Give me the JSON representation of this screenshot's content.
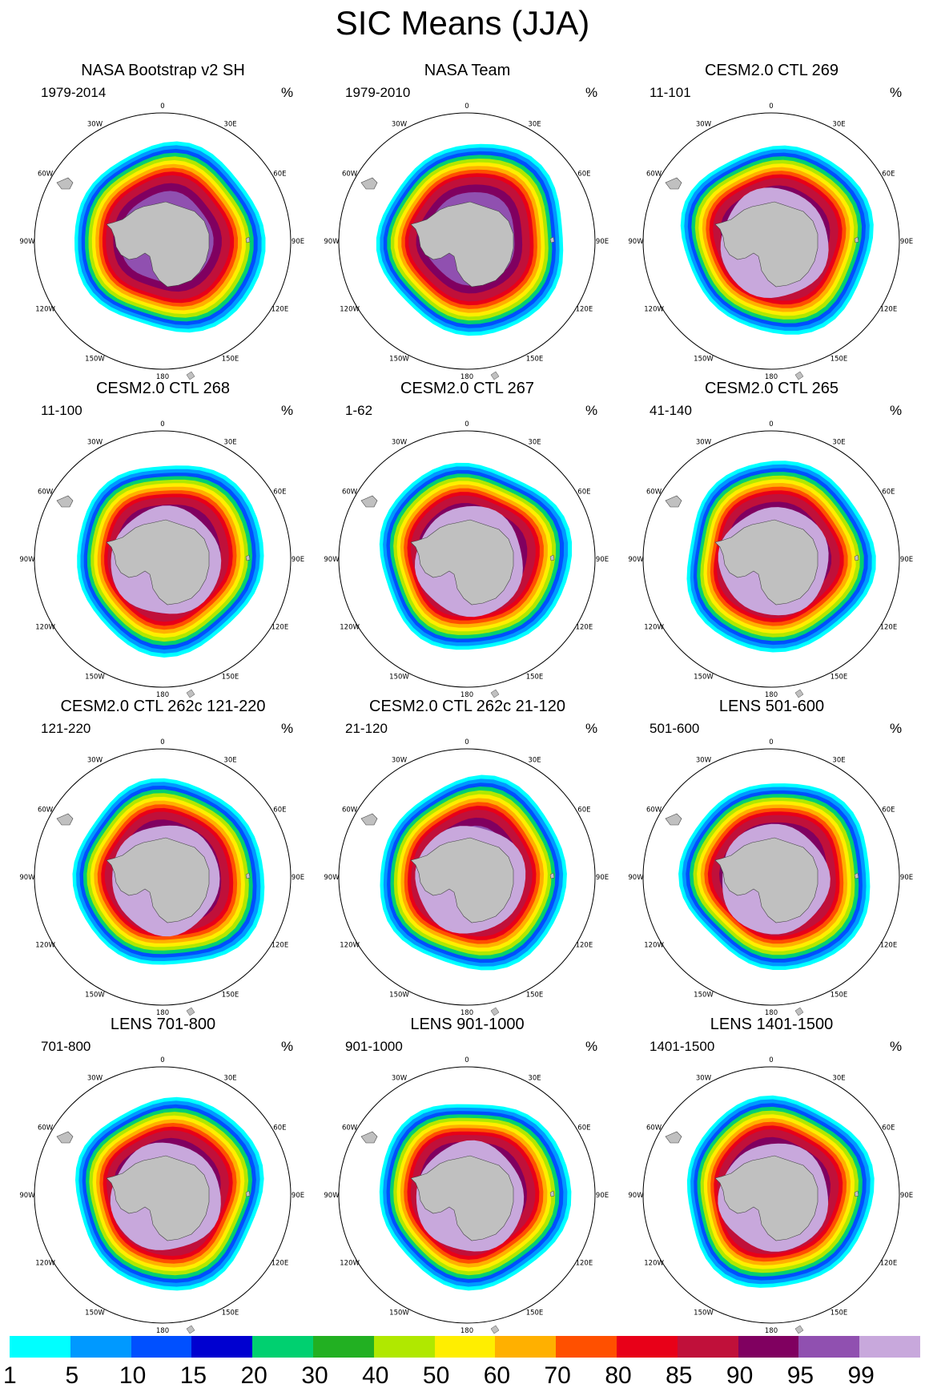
{
  "title": "SIC Means (JJA)",
  "unit": "%",
  "lon_labels": [
    "0",
    "30E",
    "60E",
    "90E",
    "120E",
    "150E",
    "180",
    "150W",
    "120W",
    "90W",
    "60W",
    "30W"
  ],
  "panels": [
    {
      "title": "NASA Bootstrap v2 SH",
      "period": "1979-2014"
    },
    {
      "title": "NASA Team",
      "period": "1979-2010"
    },
    {
      "title": "CESM2.0 CTL 269",
      "period": "11-101"
    },
    {
      "title": "CESM2.0 CTL 268",
      "period": "11-100"
    },
    {
      "title": "CESM2.0 CTL 267",
      "period": "1-62"
    },
    {
      "title": "CESM2.0 CTL 265",
      "period": "41-140"
    },
    {
      "title": "CESM2.0 CTL 262c 121-220",
      "period": "121-220"
    },
    {
      "title": "CESM2.0 CTL 262c 21-120",
      "period": "21-120"
    },
    {
      "title": "LENS 501-600",
      "period": "501-600"
    },
    {
      "title": "LENS 701-800",
      "period": "701-800"
    },
    {
      "title": "LENS 901-1000",
      "period": "901-1000"
    },
    {
      "title": "LENS 1401-1500",
      "period": "1401-1500"
    }
  ],
  "colorbar": {
    "labels": [
      "1",
      "5",
      "10",
      "15",
      "20",
      "30",
      "40",
      "50",
      "60",
      "70",
      "80",
      "85",
      "90",
      "95",
      "99"
    ],
    "colors": [
      "#00ffff",
      "#0099ff",
      "#0050ff",
      "#0000d0",
      "#00d070",
      "#22b022",
      "#b0e800",
      "#ffee00",
      "#ffb000",
      "#ff5000",
      "#e80018",
      "#c0103a",
      "#800060",
      "#9050b0",
      "#c8a8dc"
    ]
  },
  "map_colors": {
    "land": "#c0c0c0",
    "ocean": "#ffffff",
    "outline": "#000000"
  }
}
